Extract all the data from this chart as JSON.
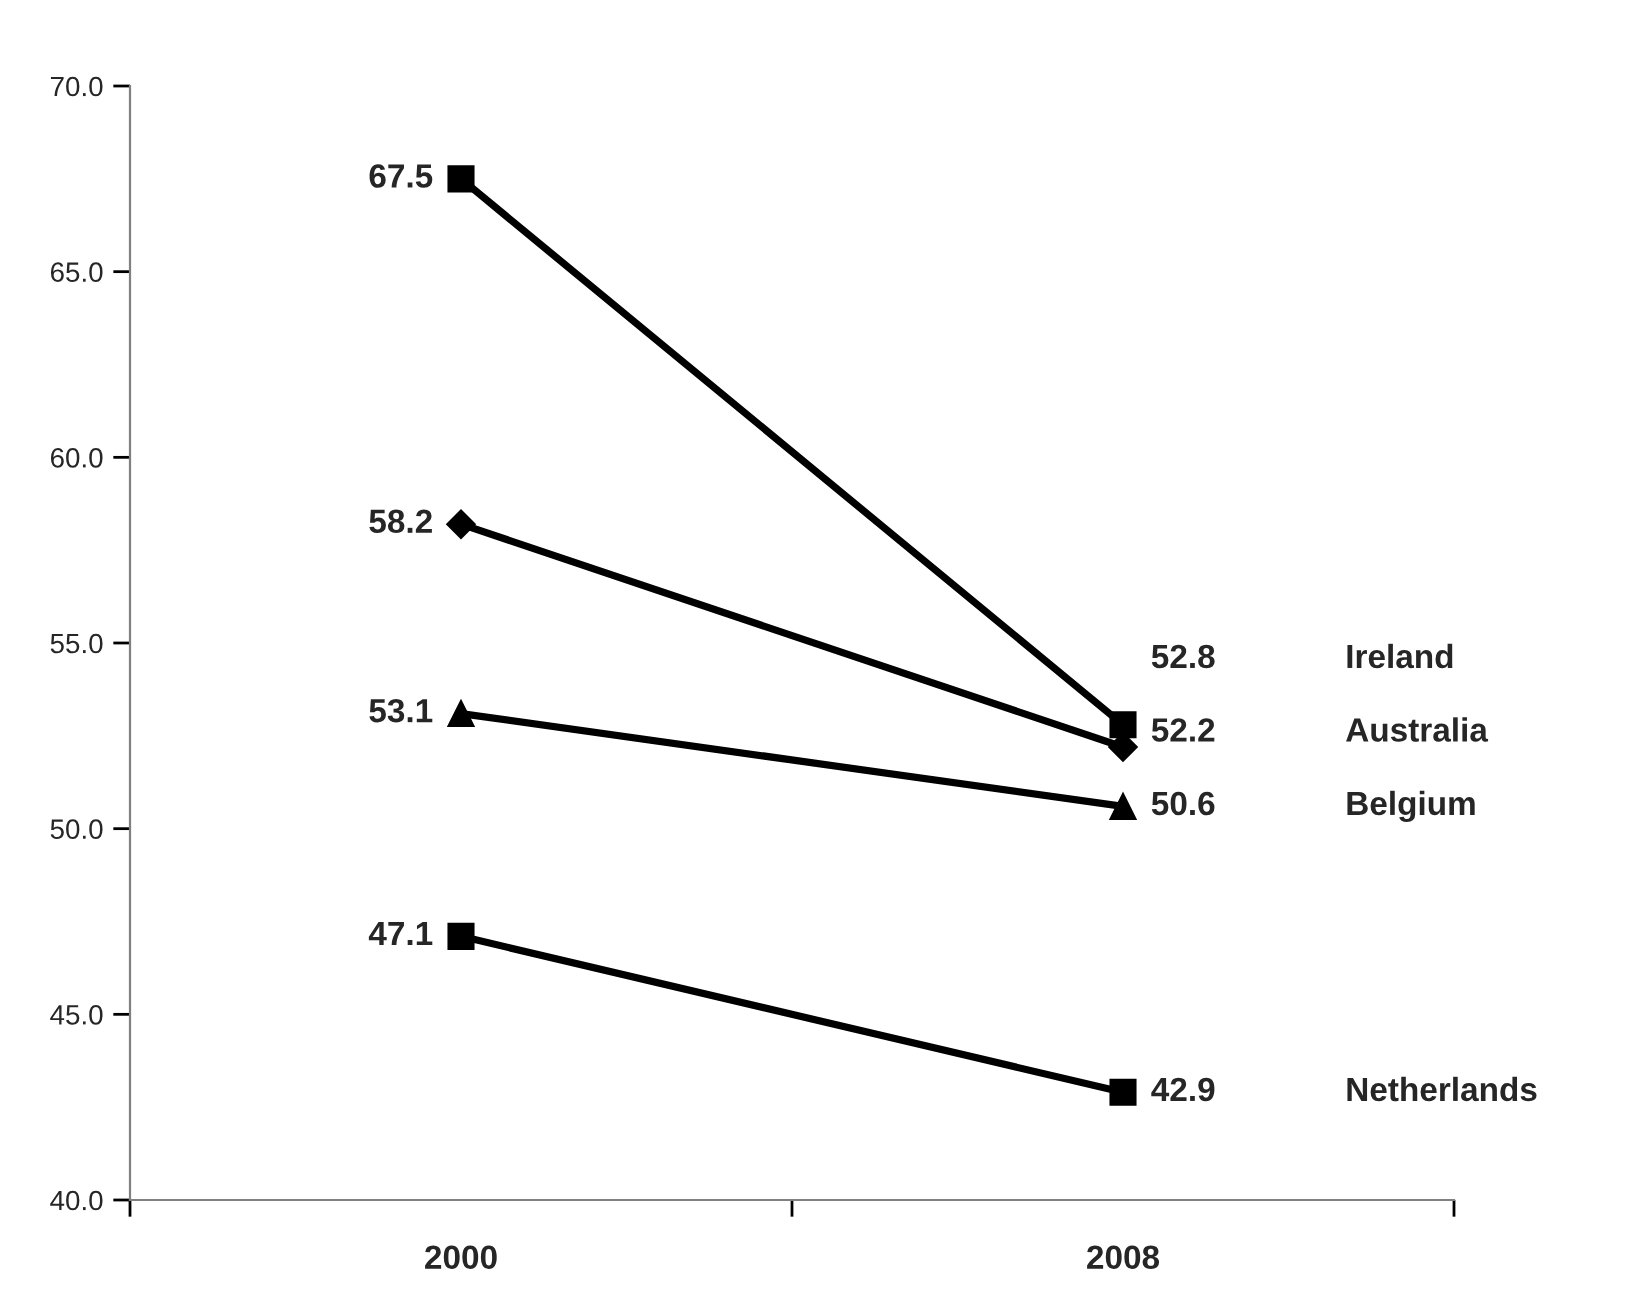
{
  "chart_data": {
    "type": "line",
    "categories": [
      "2000",
      "2008"
    ],
    "series": [
      {
        "name": "Ireland",
        "color": "#000000",
        "marker": "square",
        "values": [
          67.5,
          52.8
        ]
      },
      {
        "name": "Australia",
        "color": "#000000",
        "marker": "diamond",
        "values": [
          58.2,
          52.2
        ]
      },
      {
        "name": "Belgium",
        "color": "#000000",
        "marker": "triangle",
        "values": [
          53.1,
          50.6
        ]
      },
      {
        "name": "Netherlands",
        "color": "#000000",
        "marker": "square",
        "values": [
          47.1,
          42.9
        ]
      }
    ],
    "ylim": [
      40,
      70
    ],
    "yticks": [
      {
        "value": 40,
        "label": "40.0"
      },
      {
        "value": 45,
        "label": "45.0"
      },
      {
        "value": 50,
        "label": "50.0"
      },
      {
        "value": 55,
        "label": "55.0"
      },
      {
        "value": 60,
        "label": "60.0"
      },
      {
        "value": 65,
        "label": "65.0"
      },
      {
        "value": 70,
        "label": "70.0"
      }
    ],
    "data_labels": true,
    "grid": false,
    "legend": false,
    "line_style": "solid"
  }
}
